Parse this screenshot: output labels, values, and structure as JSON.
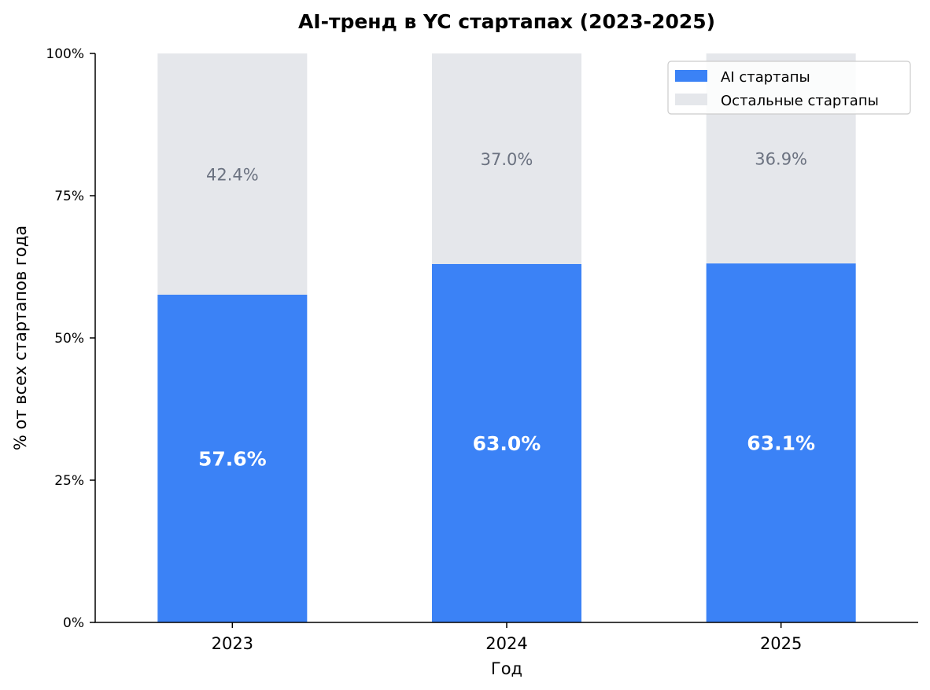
{
  "chart_data": {
    "type": "bar",
    "stacked": true,
    "title": "AI-тренд в YC стартапах (2023-2025)",
    "xlabel": "Год",
    "ylabel": "% от всех стартапов года",
    "categories": [
      "2023",
      "2024",
      "2025"
    ],
    "series": [
      {
        "name": "AI стартапы",
        "values": [
          57.6,
          63.0,
          63.1
        ],
        "labels": [
          "57.6%",
          "63.0%",
          "63.1%"
        ],
        "color": "#3b82f6"
      },
      {
        "name": "Остальные стартапы",
        "values": [
          42.4,
          37.0,
          36.9
        ],
        "labels": [
          "42.4%",
          "37.0%",
          "36.9%"
        ],
        "color": "#e5e7eb"
      }
    ],
    "ylim": [
      0,
      100
    ],
    "yticks": [
      0,
      25,
      50,
      75,
      100
    ],
    "ytick_labels": [
      "0%",
      "25%",
      "50%",
      "75%",
      "100%"
    ],
    "grid": false,
    "legend_position": "top-right"
  }
}
